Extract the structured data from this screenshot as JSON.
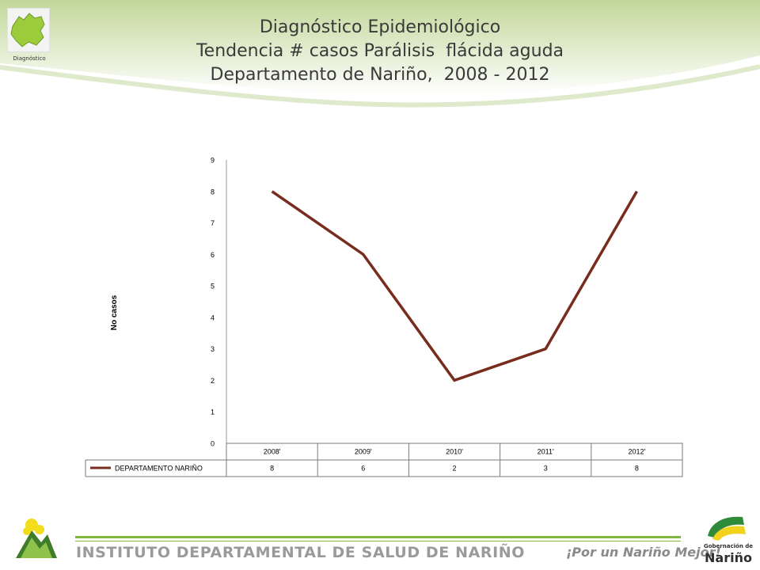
{
  "header": {
    "logo_caption": "Diagnóstico",
    "title_lines": [
      "Diagnóstico Epidemiológico",
      "Tendencia # casos Parálisis  flácida aguda",
      "Departamento de Nariño,  2008 - 2012"
    ]
  },
  "footer": {
    "institute": "INSTITUTO DEPARTAMENTAL DE SALUD DE NARIÑO",
    "slogan": "¡Por un Nariño Mejor!",
    "gobernacion_line1": "Gobernación de",
    "gobernacion_line2": "Nariño"
  },
  "colors": {
    "series": "#772c1e",
    "footer_green": "#7db842",
    "header_green": "#c9dca5"
  },
  "chart_data": {
    "type": "line",
    "title": "",
    "xlabel": "",
    "ylabel": "No casos",
    "categories": [
      "2008'",
      "2009'",
      "2010'",
      "2011'",
      "2012'"
    ],
    "series": [
      {
        "name": "DEPARTAMENTO NARIÑO",
        "values": [
          8,
          6,
          2,
          3,
          8
        ]
      }
    ],
    "ylim": [
      0,
      9
    ],
    "yticks": [
      "0",
      "1",
      "2",
      "3",
      "4",
      "5",
      "6",
      "7",
      "8",
      "9"
    ],
    "grid": false,
    "legend": "data table below chart",
    "data_table": true
  }
}
